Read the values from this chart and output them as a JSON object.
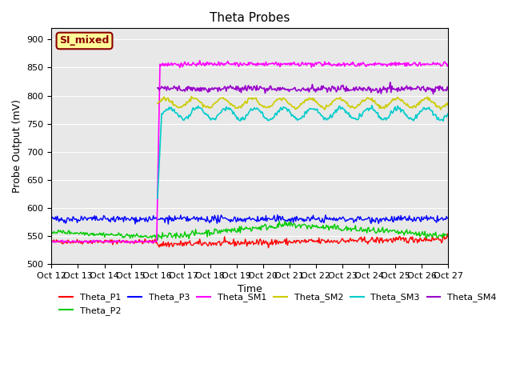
{
  "title": "Theta Probes",
  "xlabel": "Time",
  "ylabel": "Probe Output (mV)",
  "ylim": [
    500,
    920
  ],
  "yticks": [
    500,
    550,
    600,
    650,
    700,
    750,
    800,
    850,
    900
  ],
  "x_labels": [
    "Oct 12",
    "Oct 13",
    "Oct 14",
    "Oct 15",
    "Oct 16",
    "Oct 17",
    "Oct 18",
    "Oct 19",
    "Oct 20",
    "Oct 21",
    "Oct 22",
    "Oct 23",
    "Oct 24",
    "Oct 25",
    "Oct 26",
    "Oct 27"
  ],
  "annotation_text": "SI_mixed",
  "annotation_color": "#8B0000",
  "annotation_bg": "#FFFF99",
  "bg_color": "#E8E8E8",
  "series_colors": {
    "Theta_P1": "#FF0000",
    "Theta_P2": "#00CC00",
    "Theta_P3": "#0000FF",
    "Theta_SM1": "#FF00FF",
    "Theta_SM2": "#CCCC00",
    "Theta_SM3": "#00CCCC",
    "Theta_SM4": "#9900CC"
  }
}
